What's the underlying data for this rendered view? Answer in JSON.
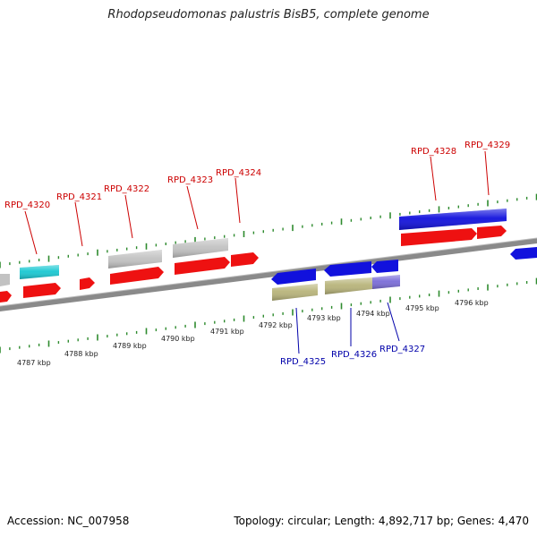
{
  "title": "Rhodopseudomonas palustris BisB5, complete genome",
  "footer": {
    "accession": "Accession: NC_007958",
    "stats": "Topology: circular; Length: 4,892,717 bp; Genes: 4,470"
  },
  "colors": {
    "backbone": "#8a8a8a",
    "tick": "#2e8b2e",
    "cds": "#ee1111",
    "gene_blue": "#1111dd",
    "gene_cyan": "#19c8d2",
    "gene_grey": "#c2c2c2",
    "gene_olive": "#b8b47a",
    "gene_purple": "#7a6cd8",
    "label_forward": "#cc0000",
    "label_reverse": "#0000aa"
  },
  "scale_labels": [
    "4787 kbp",
    "4788 kbp",
    "4789 kbp",
    "4790 kbp",
    "4791 kbp",
    "4792 kbp",
    "4793 kbp",
    "4794 kbp",
    "4795 kbp",
    "4796 kbp"
  ],
  "forward_labels": [
    "RPD_4320",
    "RPD_4321",
    "RPD_4322",
    "RPD_4323",
    "RPD_4324",
    "RPD_4328",
    "RPD_4329"
  ],
  "reverse_labels": [
    "RPD_4325",
    "RPD_4326",
    "RPD_4327"
  ]
}
